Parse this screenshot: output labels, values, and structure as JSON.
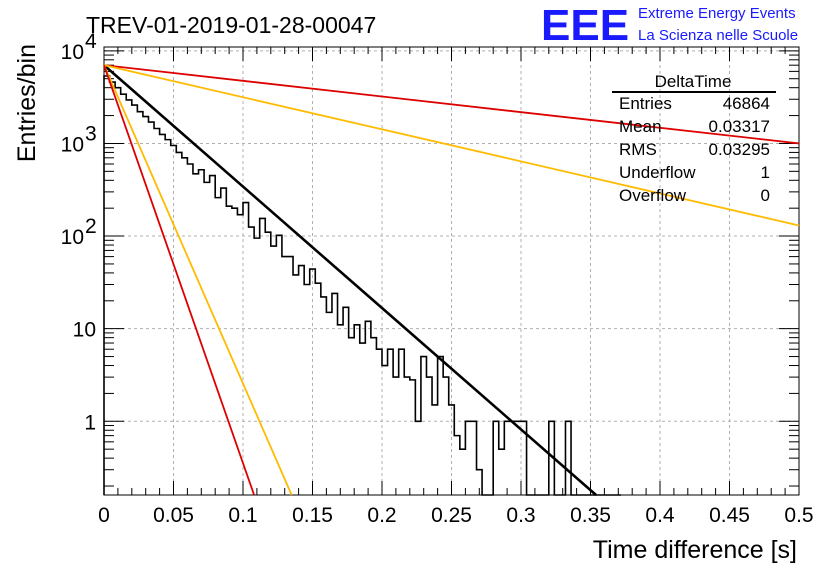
{
  "title": "TREV-01-2019-01-28-00047",
  "logo": {
    "mark": "EEE",
    "line1": "Extreme Energy Events",
    "line2": "La Scienza nelle Scuole",
    "color": "#1a1aff"
  },
  "stats_box": {
    "name": "DeltaTime",
    "rows": [
      {
        "label": "Entries",
        "value": "46864"
      },
      {
        "label": "Mean",
        "value": "0.03317"
      },
      {
        "label": "RMS",
        "value": "0.03295"
      },
      {
        "label": "Underflow",
        "value": "1"
      },
      {
        "label": "Overflow",
        "value": "0"
      }
    ]
  },
  "chart_data": {
    "type": "line",
    "xlabel": "Time difference [s]",
    "ylabel": "Entries/bin",
    "xlim": [
      0,
      0.5
    ],
    "ylim": [
      0.16,
      11000
    ],
    "yscale": "log",
    "grid": true,
    "x_ticks": [
      "0",
      "0.05",
      "0.1",
      "0.15",
      "0.2",
      "0.25",
      "0.3",
      "0.35",
      "0.4",
      "0.45",
      "0.5"
    ],
    "y_ticks": [
      {
        "value": 1,
        "label": "1"
      },
      {
        "value": 10,
        "label": "10"
      },
      {
        "value": 100,
        "label": "10",
        "sup": "2"
      },
      {
        "value": 1000,
        "label": "10",
        "sup": "3"
      },
      {
        "value": 10000,
        "label": "10",
        "sup": "4"
      }
    ],
    "series": [
      {
        "kind": "histogram",
        "color": "#000000",
        "bin_width": 0.004,
        "x_start": 0,
        "values": [
          5350,
          4600,
          4000,
          3400,
          2950,
          2600,
          2200,
          1950,
          1700,
          1450,
          1250,
          1100,
          950,
          800,
          700,
          600,
          470,
          520,
          380,
          450,
          260,
          330,
          210,
          200,
          170,
          230,
          125,
          95,
          155,
          110,
          78,
          102,
          60,
          60,
          38,
          48,
          30,
          44,
          31,
          22,
          15,
          24,
          11,
          17,
          8,
          11,
          7,
          12,
          8,
          6,
          4,
          6,
          3,
          6,
          3,
          2.8,
          1,
          5,
          3,
          1.5,
          5,
          3,
          1.5,
          0.7,
          0.5,
          1,
          1,
          0.3,
          0,
          0,
          1,
          0.5,
          1,
          1,
          1,
          1,
          0,
          0,
          0,
          0,
          1,
          0,
          0,
          1,
          0,
          0,
          0,
          0,
          0,
          0,
          0,
          0,
          0
        ]
      },
      {
        "kind": "fit",
        "color": "#000000",
        "x0": 0,
        "y0": 7000,
        "x1": 0.354,
        "y1": 0.16
      },
      {
        "kind": "line",
        "color": "#dd0000",
        "x0": 0,
        "y0": 7000,
        "x1": 0.5,
        "y1": 1000
      },
      {
        "kind": "line",
        "color": "#ffbb00",
        "x0": 0,
        "y0": 7000,
        "x1": 0.5,
        "y1": 130
      },
      {
        "kind": "line",
        "color": "#ffbb00",
        "x0": 0,
        "y0": 7000,
        "x1": 0.135,
        "y1": 0.16
      },
      {
        "kind": "line",
        "color": "#dd0000",
        "x0": 0,
        "y0": 7000,
        "x1": 0.108,
        "y1": 0.16
      }
    ]
  }
}
